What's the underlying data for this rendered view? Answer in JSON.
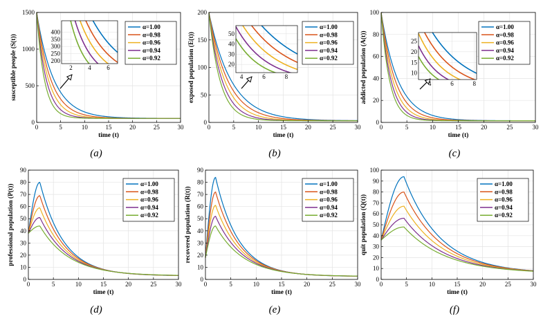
{
  "figure": {
    "legend_symbol": "α"
  },
  "chart_data": [
    {
      "type": "line",
      "caption": "(a)",
      "xlabel": "time (t)",
      "ylabel": "susceptible people (S(t))",
      "xlim": [
        0,
        30
      ],
      "ylim": [
        0,
        1500
      ],
      "xticks": [
        0,
        5,
        10,
        15,
        20,
        25,
        30
      ],
      "yticks": [
        0,
        500,
        1000,
        1500
      ],
      "model": {
        "kind": "decay",
        "initial": 1500,
        "final": 55,
        "rates": [
          0.28,
          0.34,
          0.41,
          0.5,
          0.62
        ]
      },
      "inset": {
        "xlim": [
          1,
          7
        ],
        "ylim": [
          180,
          480
        ],
        "xticks": [
          2,
          4,
          6
        ],
        "yticks": [
          200,
          250,
          300,
          350,
          400
        ]
      },
      "series": [
        {
          "name": "α=1.00",
          "color": "#0072BD"
        },
        {
          "name": "α=0.98",
          "color": "#D95319"
        },
        {
          "name": "α=0.96",
          "color": "#EDB120"
        },
        {
          "name": "α=0.94",
          "color": "#7E2F8E"
        },
        {
          "name": "α=0.92",
          "color": "#77AC30"
        }
      ]
    },
    {
      "type": "line",
      "caption": "(b)",
      "xlabel": "time (t)",
      "ylabel": "exposed population (E(t))",
      "xlim": [
        0,
        30
      ],
      "ylim": [
        0,
        200
      ],
      "xticks": [
        0,
        5,
        10,
        15,
        20,
        25,
        30
      ],
      "yticks": [
        0,
        50,
        100,
        150,
        200
      ],
      "model": {
        "kind": "decay",
        "initial": 200,
        "final": 3,
        "rates": [
          0.22,
          0.26,
          0.31,
          0.37,
          0.44
        ]
      },
      "inset": {
        "xlim": [
          3.5,
          9
        ],
        "ylim": [
          12,
          58
        ],
        "xticks": [
          4,
          6,
          8
        ],
        "yticks": [
          20,
          30,
          40,
          50
        ]
      },
      "series": [
        {
          "name": "α=1.00",
          "color": "#0072BD"
        },
        {
          "name": "α=0.98",
          "color": "#D95319"
        },
        {
          "name": "α=0.96",
          "color": "#EDB120"
        },
        {
          "name": "α=0.94",
          "color": "#7E2F8E"
        },
        {
          "name": "α=0.92",
          "color": "#77AC30"
        }
      ]
    },
    {
      "type": "line",
      "caption": "(c)",
      "xlabel": "time (t)",
      "ylabel": "addicted population (A(t))",
      "xlim": [
        0,
        30
      ],
      "ylim": [
        0,
        100
      ],
      "xticks": [
        0,
        5,
        10,
        15,
        20,
        25,
        30
      ],
      "yticks": [
        0,
        20,
        40,
        60,
        80,
        100
      ],
      "model": {
        "kind": "decay",
        "initial": 100,
        "final": 1.5,
        "rates": [
          0.3,
          0.36,
          0.43,
          0.51,
          0.6
        ]
      },
      "inset": {
        "xlim": [
          3,
          8.2
        ],
        "ylim": [
          7,
          29
        ],
        "xticks": [
          4,
          6,
          8
        ],
        "yticks": [
          10,
          15,
          20,
          25
        ]
      },
      "series": [
        {
          "name": "α=1.00",
          "color": "#0072BD"
        },
        {
          "name": "α=0.98",
          "color": "#D95319"
        },
        {
          "name": "α=0.96",
          "color": "#EDB120"
        },
        {
          "name": "α=0.94",
          "color": "#7E2F8E"
        },
        {
          "name": "α=0.92",
          "color": "#77AC30"
        }
      ]
    },
    {
      "type": "line",
      "caption": "(d)",
      "xlabel": "time (t)",
      "ylabel": "professional population (P(t))",
      "xlim": [
        0,
        30
      ],
      "ylim": [
        0,
        90
      ],
      "xticks": [
        0,
        5,
        10,
        15,
        20,
        25,
        30
      ],
      "yticks": [
        0,
        10,
        20,
        30,
        40,
        50,
        60,
        70,
        80,
        90
      ],
      "model": {
        "kind": "peak",
        "initial": 38,
        "final": 3,
        "peak_time": 2.3,
        "peaks": [
          80,
          69,
          59,
          51,
          44
        ],
        "decay_rates": [
          0.21,
          0.2,
          0.19,
          0.18,
          0.17
        ]
      },
      "series": [
        {
          "name": "α=1.00",
          "color": "#0072BD"
        },
        {
          "name": "α=0.98",
          "color": "#D95319"
        },
        {
          "name": "α=0.96",
          "color": "#EDB120"
        },
        {
          "name": "α=0.94",
          "color": "#7E2F8E"
        },
        {
          "name": "α=0.92",
          "color": "#77AC30"
        }
      ]
    },
    {
      "type": "line",
      "caption": "(e)",
      "xlabel": "time (t)",
      "ylabel": "recovered population (R(t))",
      "xlim": [
        0,
        30
      ],
      "ylim": [
        0,
        90
      ],
      "xticks": [
        0,
        5,
        10,
        15,
        20,
        25,
        30
      ],
      "yticks": [
        0,
        10,
        20,
        30,
        40,
        50,
        60,
        70,
        80,
        90
      ],
      "model": {
        "kind": "peak",
        "initial": 18,
        "final": 2.5,
        "peak_time": 2.0,
        "peaks": [
          84,
          72,
          61,
          52,
          44
        ],
        "decay_rates": [
          0.22,
          0.21,
          0.2,
          0.19,
          0.18
        ]
      },
      "series": [
        {
          "name": "α=1.00",
          "color": "#0072BD"
        },
        {
          "name": "α=0.98",
          "color": "#D95319"
        },
        {
          "name": "α=0.96",
          "color": "#EDB120"
        },
        {
          "name": "α=0.94",
          "color": "#7E2F8E"
        },
        {
          "name": "α=0.92",
          "color": "#77AC30"
        }
      ]
    },
    {
      "type": "line",
      "caption": "(f)",
      "xlabel": "time (t)",
      "ylabel": "quit population (Q(t))",
      "xlim": [
        0,
        30
      ],
      "ylim": [
        0,
        100
      ],
      "xticks": [
        0,
        5,
        10,
        15,
        20,
        25,
        30
      ],
      "yticks": [
        0,
        10,
        20,
        30,
        40,
        50,
        60,
        70,
        80,
        90,
        100
      ],
      "model": {
        "kind": "peak",
        "initial": 36,
        "final": 5.5,
        "peak_time": 4.5,
        "peaks": [
          94,
          80,
          67,
          56,
          48
        ],
        "decay_rates": [
          0.14,
          0.135,
          0.13,
          0.125,
          0.12
        ]
      },
      "series": [
        {
          "name": "α=1.00",
          "color": "#0072BD"
        },
        {
          "name": "α=0.98",
          "color": "#D95319"
        },
        {
          "name": "α=0.96",
          "color": "#EDB120"
        },
        {
          "name": "α=0.94",
          "color": "#7E2F8E"
        },
        {
          "name": "α=0.92",
          "color": "#77AC30"
        }
      ]
    }
  ]
}
